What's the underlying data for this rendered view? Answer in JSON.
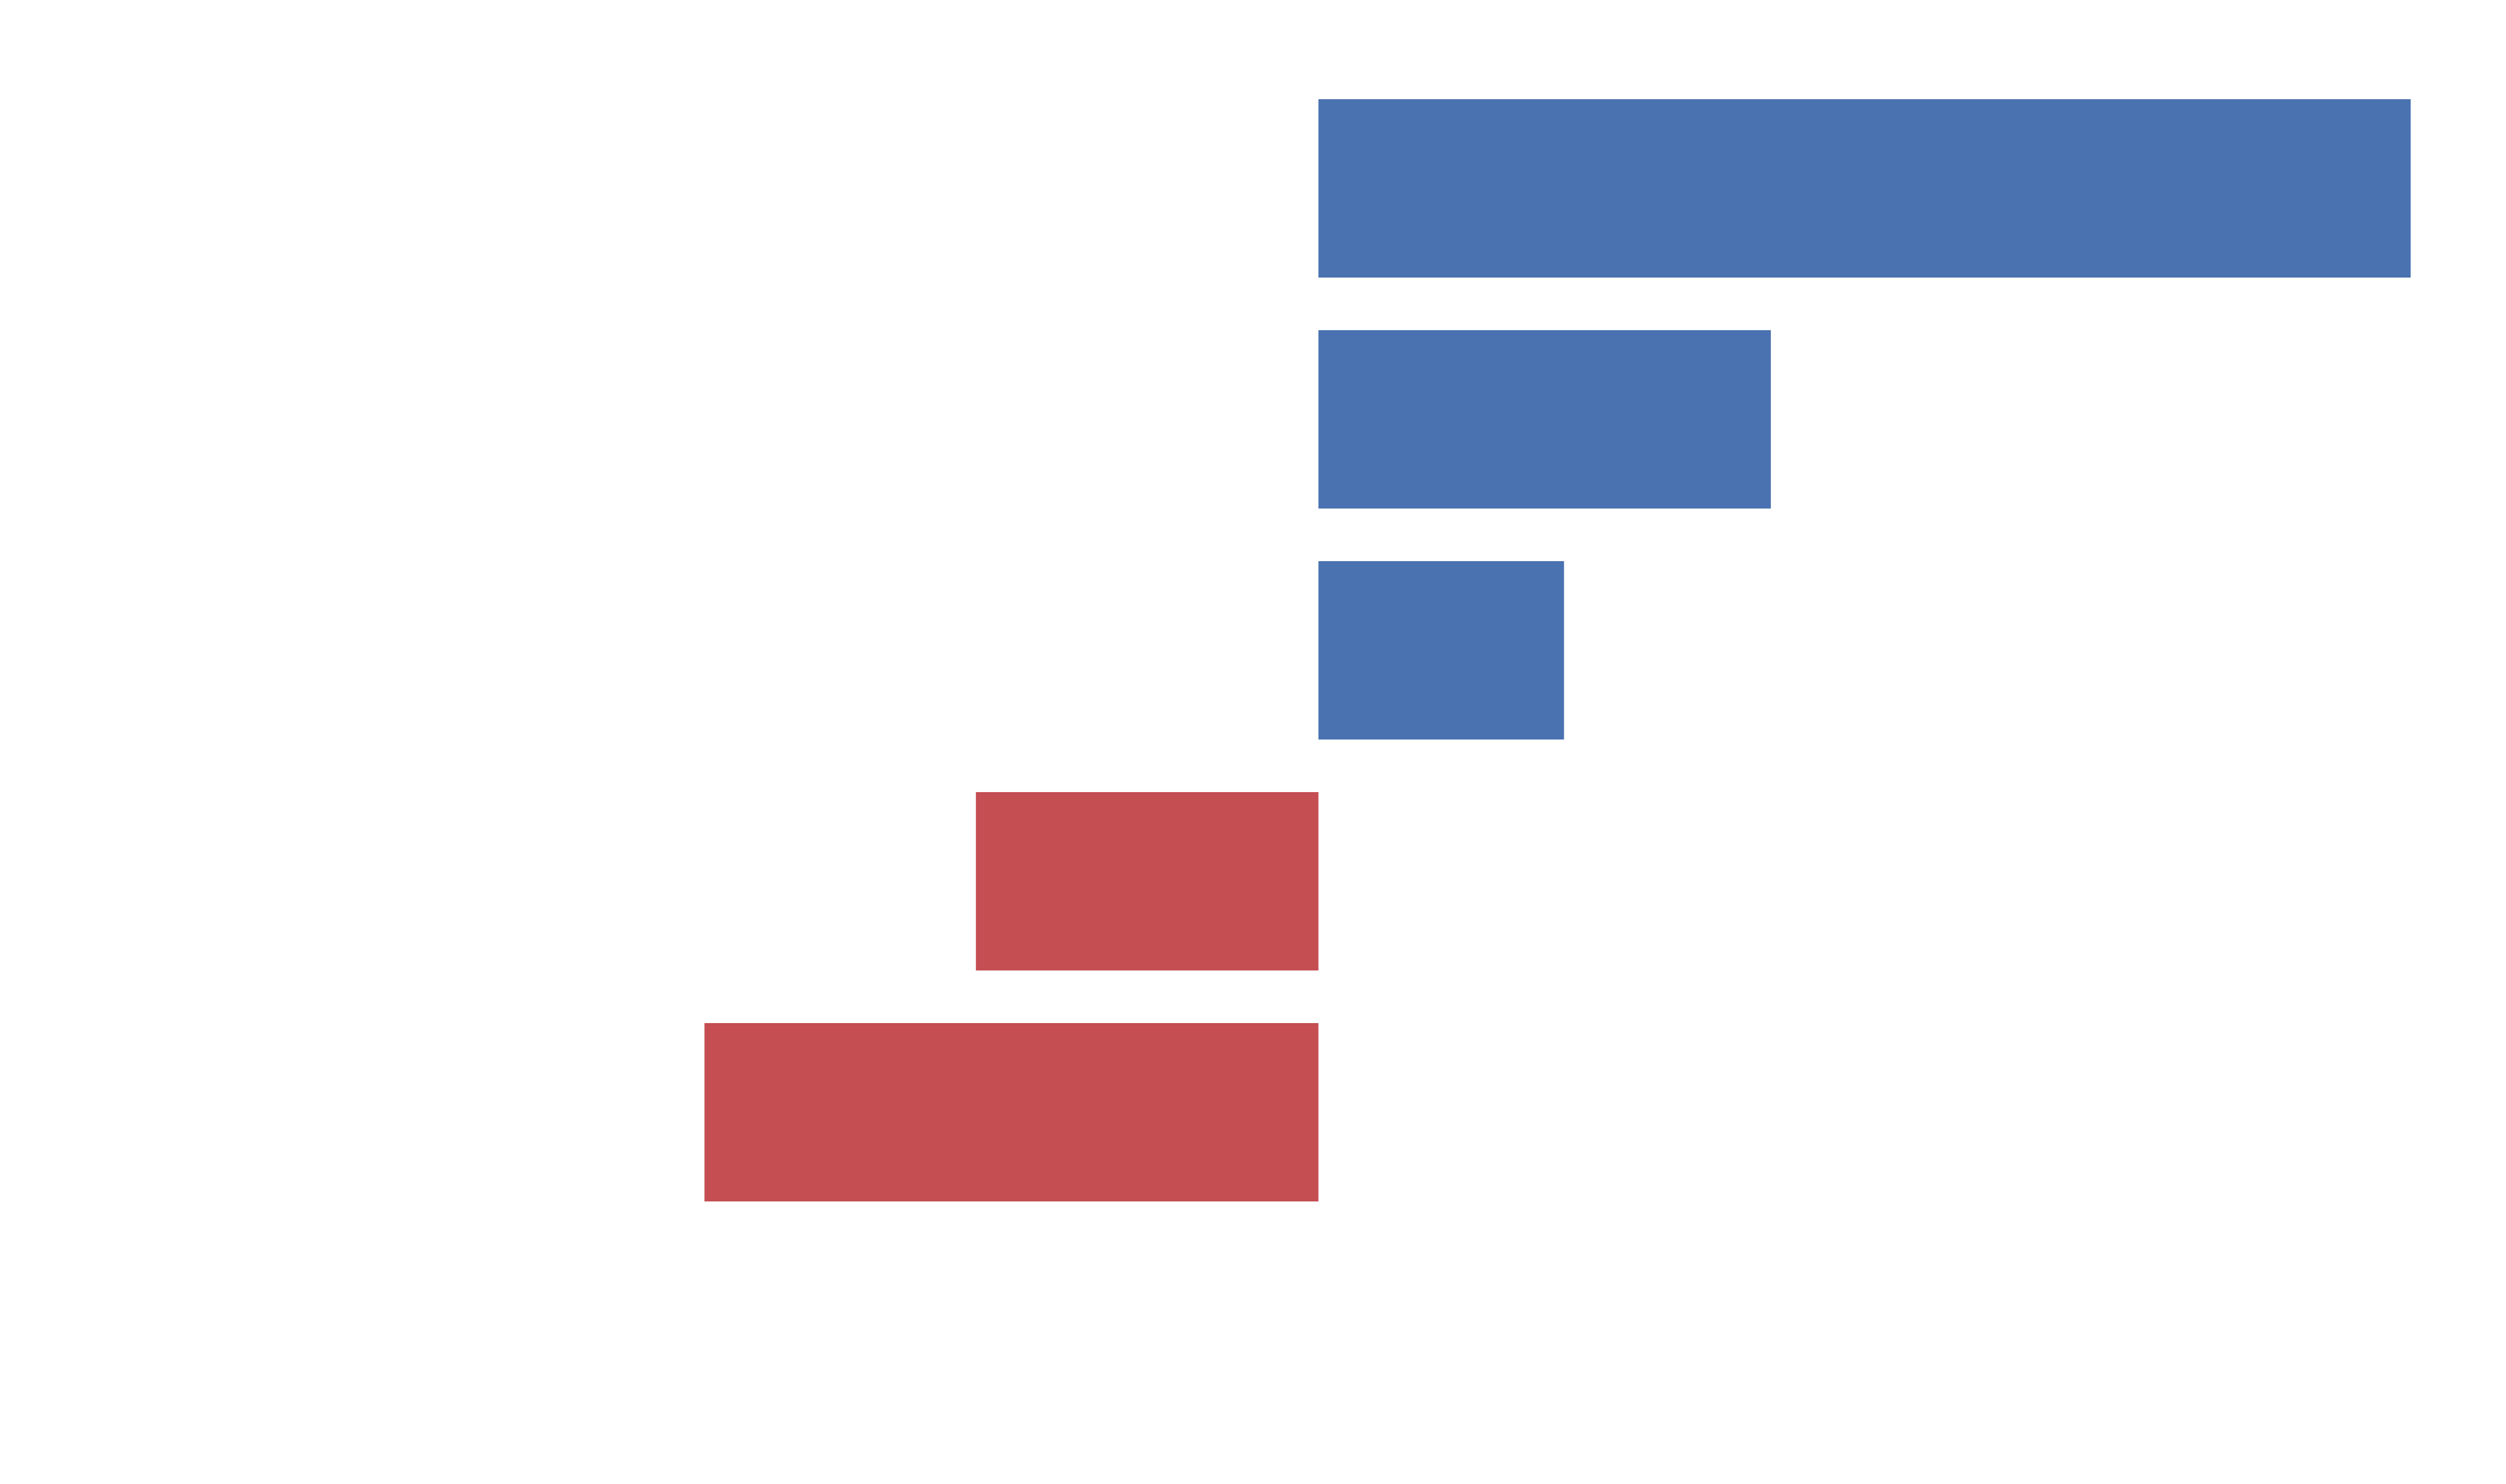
{
  "chart_data": {
    "type": "bar",
    "orientation": "horizontal",
    "title": "",
    "xlabel": "",
    "ylabel": "",
    "grid": false,
    "legend": "none",
    "values": [
      1.69,
      0.7,
      0.38,
      -0.53,
      -0.95
    ],
    "xlim": [
      -2.04,
      1.86
    ],
    "colors": {
      "positive": "#4a72b0",
      "negative": "#c44e52"
    }
  }
}
